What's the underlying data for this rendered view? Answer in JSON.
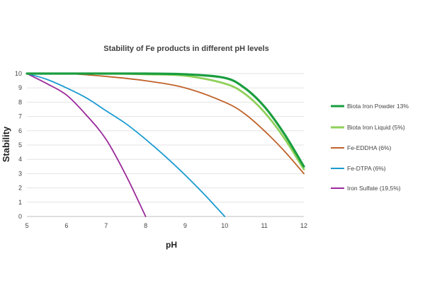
{
  "chart_data": {
    "type": "line",
    "title": "Stability of Fe products in different pH levels",
    "xlabel": "pH",
    "ylabel": "Stability",
    "xlim": [
      5,
      12
    ],
    "ylim": [
      0,
      10
    ],
    "x_ticks": [
      "5",
      "6",
      "7",
      "8",
      "9",
      "10",
      "11",
      "12"
    ],
    "y_ticks": [
      "0",
      "1",
      "2",
      "3",
      "4",
      "5",
      "6",
      "7",
      "8",
      "9",
      "10"
    ],
    "grid": "horizontal",
    "legend_position": "right",
    "series": [
      {
        "name": "Biota Iron Powder 13%",
        "color": "#1a9e3f",
        "emphasis": "thick",
        "points": [
          [
            5,
            10
          ],
          [
            6,
            10
          ],
          [
            7,
            10
          ],
          [
            8,
            10
          ],
          [
            9,
            9.95
          ],
          [
            10,
            9.7
          ],
          [
            10.5,
            9.0
          ],
          [
            11,
            7.7
          ],
          [
            11.5,
            5.8
          ],
          [
            12,
            3.5
          ]
        ]
      },
      {
        "name": "Biota Iron Liquid (5%)",
        "color": "#8fd05a",
        "emphasis": "thick",
        "points": [
          [
            5,
            10
          ],
          [
            6,
            10
          ],
          [
            7,
            10
          ],
          [
            8,
            9.95
          ],
          [
            9,
            9.85
          ],
          [
            10,
            9.3
          ],
          [
            10.5,
            8.6
          ],
          [
            11,
            7.3
          ],
          [
            11.5,
            5.5
          ],
          [
            12,
            3.3
          ]
        ]
      },
      {
        "name": "Fe-EDDHA (6%)",
        "color": "#c0622a",
        "emphasis": "normal",
        "points": [
          [
            5,
            10
          ],
          [
            6,
            10
          ],
          [
            7,
            9.8
          ],
          [
            8,
            9.5
          ],
          [
            9,
            9.0
          ],
          [
            10,
            8.0
          ],
          [
            10.5,
            7.2
          ],
          [
            11,
            6.0
          ],
          [
            11.5,
            4.6
          ],
          [
            12,
            3.0
          ]
        ]
      },
      {
        "name": "Fe-DTPA (6%)",
        "color": "#1b9bd1",
        "emphasis": "normal",
        "points": [
          [
            5,
            10
          ],
          [
            5.5,
            9.6
          ],
          [
            6,
            9.0
          ],
          [
            6.5,
            8.3
          ],
          [
            7,
            7.4
          ],
          [
            7.5,
            6.5
          ],
          [
            8,
            5.4
          ],
          [
            8.5,
            4.2
          ],
          [
            9,
            2.9
          ],
          [
            9.5,
            1.5
          ],
          [
            10,
            0
          ]
        ]
      },
      {
        "name": "Iron Sulfate (19,5%)",
        "color": "#9b2a9a",
        "emphasis": "normal",
        "points": [
          [
            5,
            10
          ],
          [
            5.5,
            9.3
          ],
          [
            6,
            8.5
          ],
          [
            6.5,
            7.1
          ],
          [
            7,
            5.4
          ],
          [
            7.5,
            2.9
          ],
          [
            8,
            0
          ]
        ]
      }
    ]
  }
}
